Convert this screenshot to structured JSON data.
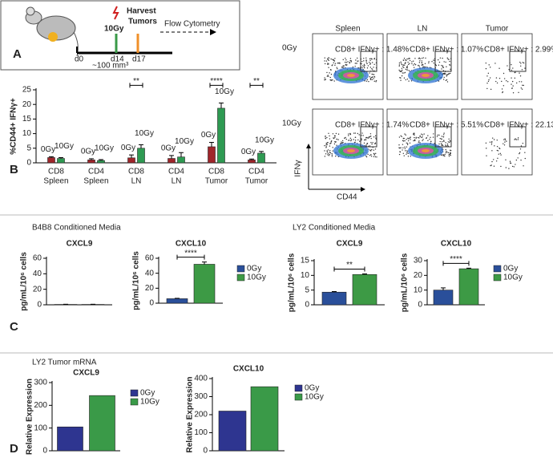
{
  "panel_labels": [
    "A",
    "B",
    "C",
    "D"
  ],
  "schematic": {
    "dose": "10Gy",
    "harvest": [
      "Harvest",
      "Tumors"
    ],
    "flow": "Flow Cytometry",
    "days": [
      "d0",
      "d14",
      "d17"
    ],
    "volume": "~100 mm³"
  },
  "flow_cytometry": {
    "columns": [
      "Spleen",
      "LN",
      "Tumor"
    ],
    "rows": [
      "0Gy",
      "10Gy"
    ],
    "gates": [
      [
        "CD8+ IFNγ+ : 1.48%",
        "CD8+ IFNγ+ : 1.07%",
        "CD8+ IFNγ+ : 2.99%"
      ],
      [
        "CD8+ IFNγ+ : 1.74%",
        "CD8+ IFNγ+ : 5.51%",
        "CD8+ IFNγ+ : 22.13%"
      ]
    ],
    "x_label": "CD44",
    "y_label": "IFNγ"
  },
  "section_titles": [
    "B4B8 Conditioned Media",
    "LY2 Conditioned Media",
    "LY2 Tumor mRNA"
  ],
  "chart_data": [
    {
      "type": "bar",
      "ylabel": "%CD44+ IFNγ+",
      "categories": [
        [
          "CD8",
          "Spleen"
        ],
        [
          "CD4",
          "Spleen"
        ],
        [
          "CD8",
          "LN"
        ],
        [
          "CD4",
          "LN"
        ],
        [
          "CD8",
          "Tumor"
        ],
        [
          "CD4",
          "Tumor"
        ]
      ],
      "series": [
        {
          "name": "0Gy",
          "color": "#a0252a",
          "values": [
            1.8,
            1.0,
            1.7,
            1.5,
            5.5,
            1.0
          ],
          "errors": [
            0.3,
            0.4,
            1.0,
            1.0,
            1.5,
            0.3
          ]
        },
        {
          "name": "10Gy",
          "color": "#2e9a52",
          "values": [
            1.5,
            0.8,
            5.0,
            2.0,
            18.7,
            3.3
          ],
          "errors": [
            0.3,
            0.3,
            1.2,
            1.5,
            1.8,
            0.6
          ]
        }
      ],
      "ylim": [
        0,
        25
      ],
      "yticks": [
        0,
        5,
        10,
        15,
        20,
        25
      ],
      "annotations": [
        {
          "text": "**",
          "category": 2
        },
        {
          "text": "****",
          "category": 4
        },
        {
          "text": "**",
          "category": 5
        }
      ]
    },
    {
      "type": "bar",
      "title": "CXCL9",
      "ylabel": "pg/mL/10⁶ cells",
      "series": [
        {
          "name": "0Gy",
          "color": "#2a4f9a",
          "values": [
            0.5
          ],
          "errors": [
            0.2
          ]
        },
        {
          "name": "10Gy",
          "color": "#3d9a45",
          "values": [
            0.5
          ],
          "errors": [
            0.2
          ]
        }
      ],
      "ylim": [
        0,
        60
      ],
      "yticks": [
        0,
        20,
        40,
        60
      ]
    },
    {
      "type": "bar",
      "title": "CXCL10",
      "ylabel": "pg/mL/10⁶ cells",
      "series": [
        {
          "name": "0Gy",
          "color": "#2a4f9a",
          "values": [
            6
          ],
          "errors": [
            0.5
          ]
        },
        {
          "name": "10Gy",
          "color": "#3d9a45",
          "values": [
            52
          ],
          "errors": [
            3
          ]
        }
      ],
      "ylim": [
        0,
        60
      ],
      "yticks": [
        0,
        20,
        40,
        60
      ],
      "annotations": [
        {
          "text": "****"
        }
      ],
      "legend": true
    },
    {
      "type": "bar",
      "title": "CXCL9",
      "ylabel": "pg/mL/10⁶ cells",
      "series": [
        {
          "name": "0Gy",
          "color": "#2a4f9a",
          "values": [
            4.3
          ],
          "errors": [
            0.2
          ]
        },
        {
          "name": "10Gy",
          "color": "#3d9a45",
          "values": [
            10.3
          ],
          "errors": [
            0.2
          ]
        }
      ],
      "ylim": [
        0,
        15
      ],
      "yticks": [
        0,
        5,
        10,
        15
      ],
      "annotations": [
        {
          "text": "**"
        }
      ]
    },
    {
      "type": "bar",
      "title": "CXCL10",
      "ylabel": "pg/mL/10⁶ cells",
      "series": [
        {
          "name": "0Gy",
          "color": "#2a4f9a",
          "values": [
            10
          ],
          "errors": [
            1.5
          ]
        },
        {
          "name": "10Gy",
          "color": "#3d9a45",
          "values": [
            24.5
          ],
          "errors": [
            0.4
          ]
        }
      ],
      "ylim": [
        0,
        30
      ],
      "yticks": [
        0,
        10,
        20,
        30
      ],
      "annotations": [
        {
          "text": "****"
        }
      ],
      "legend": true
    },
    {
      "type": "bar",
      "title": "CXCL9",
      "ylabel": "Relative Expression",
      "series": [
        {
          "name": "0Gy",
          "color": "#2e3590",
          "values": [
            105
          ]
        },
        {
          "name": "10Gy",
          "color": "#3a9a48",
          "values": [
            243
          ]
        }
      ],
      "ylim": [
        0,
        300
      ],
      "yticks": [
        0,
        100,
        200,
        300
      ],
      "legend": true
    },
    {
      "type": "bar",
      "title": "CXCL10",
      "ylabel": "Relative Expression",
      "series": [
        {
          "name": "0Gy",
          "color": "#2e3590",
          "values": [
            220
          ]
        },
        {
          "name": "10Gy",
          "color": "#3a9a48",
          "values": [
            355
          ]
        }
      ],
      "ylim": [
        0,
        400
      ],
      "yticks": [
        0,
        100,
        200,
        300,
        400
      ],
      "legend": true
    }
  ]
}
